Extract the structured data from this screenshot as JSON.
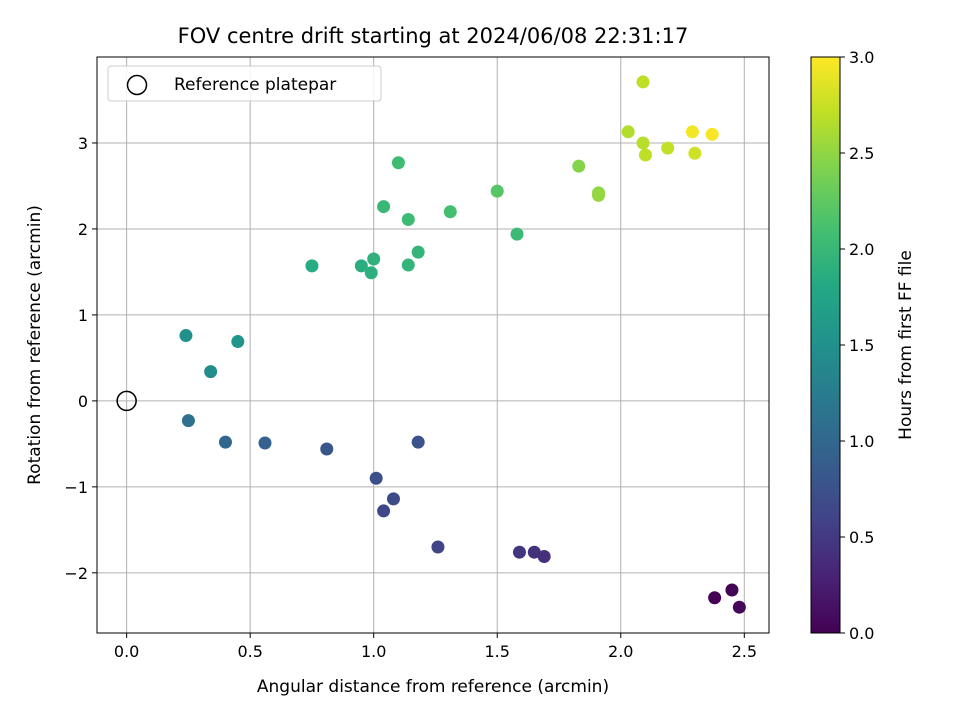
{
  "chart_data": {
    "type": "scatter",
    "title": "FOV centre drift starting at 2024/06/08 22:31:17",
    "xlabel": "Angular distance from reference (arcmin)",
    "ylabel": "Rotation from reference (arcmin)",
    "xlim": [
      -0.12,
      2.6
    ],
    "ylim": [
      -2.7,
      4.0
    ],
    "xticks": [
      0.0,
      0.5,
      1.0,
      1.5,
      2.0,
      2.5
    ],
    "xtick_labels": [
      "0.0",
      "0.5",
      "1.0",
      "1.5",
      "2.0",
      "2.5"
    ],
    "yticks": [
      -2,
      -1,
      0,
      1,
      2,
      3
    ],
    "ytick_labels": [
      "−2",
      "−1",
      "0",
      "1",
      "2",
      "3"
    ],
    "grid": true,
    "legend": {
      "position": "top-left",
      "entries": [
        "Reference platepar"
      ]
    },
    "reference_point": {
      "x": 0.0,
      "y": 0.0,
      "label": "Reference platepar"
    },
    "colorbar": {
      "label": "Hours from first FF file",
      "range": [
        0.0,
        3.0
      ],
      "ticks": [
        0.0,
        0.5,
        1.0,
        1.5,
        2.0,
        2.5,
        3.0
      ],
      "tick_labels": [
        "0.0",
        "0.5",
        "1.0",
        "1.5",
        "2.0",
        "2.5",
        "3.0"
      ],
      "colormap": "viridis"
    },
    "points": [
      {
        "x": 2.38,
        "y": -2.29,
        "c": 0.0
      },
      {
        "x": 2.45,
        "y": -2.2,
        "c": 0.03
      },
      {
        "x": 2.48,
        "y": -2.4,
        "c": 0.05
      },
      {
        "x": 1.69,
        "y": -1.81,
        "c": 0.4
      },
      {
        "x": 1.65,
        "y": -1.76,
        "c": 0.43
      },
      {
        "x": 1.59,
        "y": -1.76,
        "c": 0.46
      },
      {
        "x": 1.26,
        "y": -1.7,
        "c": 0.6
      },
      {
        "x": 1.04,
        "y": -1.28,
        "c": 0.65
      },
      {
        "x": 1.08,
        "y": -1.14,
        "c": 0.68
      },
      {
        "x": 1.01,
        "y": -0.9,
        "c": 0.72
      },
      {
        "x": 1.18,
        "y": -0.48,
        "c": 0.75
      },
      {
        "x": 0.81,
        "y": -0.56,
        "c": 0.8
      },
      {
        "x": 0.56,
        "y": -0.49,
        "c": 0.92
      },
      {
        "x": 0.4,
        "y": -0.48,
        "c": 1.0
      },
      {
        "x": 0.25,
        "y": -0.23,
        "c": 1.1
      },
      {
        "x": 0.34,
        "y": 0.34,
        "c": 1.45
      },
      {
        "x": 0.24,
        "y": 0.76,
        "c": 1.5
      },
      {
        "x": 0.45,
        "y": 0.69,
        "c": 1.55
      },
      {
        "x": 0.75,
        "y": 1.57,
        "c": 1.85
      },
      {
        "x": 0.95,
        "y": 1.57,
        "c": 1.87
      },
      {
        "x": 0.99,
        "y": 1.49,
        "c": 1.9
      },
      {
        "x": 1.0,
        "y": 1.65,
        "c": 1.92
      },
      {
        "x": 1.14,
        "y": 1.58,
        "c": 1.95
      },
      {
        "x": 1.18,
        "y": 1.73,
        "c": 1.97
      },
      {
        "x": 1.04,
        "y": 2.26,
        "c": 2.0
      },
      {
        "x": 1.1,
        "y": 2.77,
        "c": 2.05
      },
      {
        "x": 1.14,
        "y": 2.11,
        "c": 2.05
      },
      {
        "x": 1.31,
        "y": 2.2,
        "c": 2.1
      },
      {
        "x": 1.58,
        "y": 1.94,
        "c": 2.02
      },
      {
        "x": 1.5,
        "y": 2.44,
        "c": 2.2
      },
      {
        "x": 1.83,
        "y": 2.73,
        "c": 2.45
      },
      {
        "x": 1.91,
        "y": 2.42,
        "c": 2.5
      },
      {
        "x": 1.91,
        "y": 2.39,
        "c": 2.52
      },
      {
        "x": 2.03,
        "y": 3.13,
        "c": 2.65
      },
      {
        "x": 2.09,
        "y": 3.0,
        "c": 2.67
      },
      {
        "x": 2.1,
        "y": 2.86,
        "c": 2.7
      },
      {
        "x": 2.09,
        "y": 3.71,
        "c": 2.7
      },
      {
        "x": 2.19,
        "y": 2.94,
        "c": 2.72
      },
      {
        "x": 2.3,
        "y": 2.88,
        "c": 2.78
      },
      {
        "x": 2.29,
        "y": 3.13,
        "c": 2.95
      },
      {
        "x": 2.37,
        "y": 3.1,
        "c": 2.97
      }
    ]
  }
}
